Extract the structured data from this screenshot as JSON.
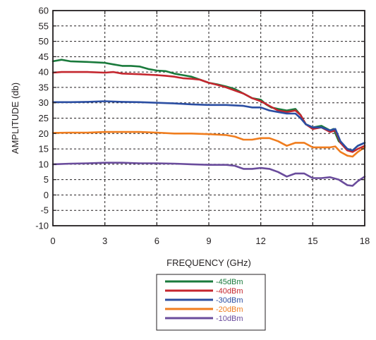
{
  "colors": {
    "axis": "#231f20",
    "grid": "#231f20"
  },
  "chart_data": {
    "type": "line",
    "xlabel": "FREQUENCY (GHz)",
    "ylabel": "AMPLITUDE (db)",
    "xlim": [
      0,
      18
    ],
    "ylim": [
      -10,
      60
    ],
    "xticks": [
      "0",
      "3",
      "6",
      "9",
      "12",
      "15",
      "18"
    ],
    "yticks": [
      "60",
      "55",
      "50",
      "45",
      "40",
      "35",
      "30",
      "25",
      "20",
      "15",
      "10",
      "5",
      "0",
      "-5",
      "-10"
    ],
    "grid": true,
    "legend_position": "bottom-center, below x-axis",
    "series": [
      {
        "name": "-45dBm",
        "color": "#1a7a3c",
        "points": [
          [
            0,
            43.5
          ],
          [
            0.5,
            44
          ],
          [
            1,
            43.5
          ],
          [
            2,
            43.3
          ],
          [
            3,
            43
          ],
          [
            3.5,
            42.5
          ],
          [
            4,
            42
          ],
          [
            4.5,
            42
          ],
          [
            5,
            41.8
          ],
          [
            5.5,
            41
          ],
          [
            6,
            40.5
          ],
          [
            6.5,
            40.3
          ],
          [
            7,
            39.5
          ],
          [
            7.5,
            39
          ],
          [
            8,
            38.5
          ],
          [
            8.5,
            37.5
          ],
          [
            9,
            36.5
          ],
          [
            9.5,
            36
          ],
          [
            10,
            35.3
          ],
          [
            10.5,
            34.5
          ],
          [
            11,
            33
          ],
          [
            11.5,
            31.5
          ],
          [
            12,
            31
          ],
          [
            12.3,
            29.5
          ],
          [
            12.6,
            28.5
          ],
          [
            13,
            28
          ],
          [
            13.5,
            27.5
          ],
          [
            14,
            28
          ],
          [
            14.3,
            26
          ],
          [
            14.6,
            23
          ],
          [
            15,
            22
          ],
          [
            15.5,
            22.5
          ],
          [
            16,
            21
          ],
          [
            16.2,
            21.5
          ],
          [
            16.5,
            17.5
          ],
          [
            17,
            15
          ],
          [
            17.3,
            14.5
          ],
          [
            17.6,
            16
          ],
          [
            18,
            17
          ]
        ]
      },
      {
        "name": "-40dBm",
        "color": "#c4262e",
        "points": [
          [
            0,
            39.8
          ],
          [
            0.5,
            40
          ],
          [
            1,
            40
          ],
          [
            2,
            40
          ],
          [
            3,
            39.8
          ],
          [
            3.5,
            40
          ],
          [
            4,
            39.5
          ],
          [
            5,
            39.3
          ],
          [
            6,
            39
          ],
          [
            6.5,
            38.8
          ],
          [
            7,
            38.5
          ],
          [
            7.5,
            38
          ],
          [
            8,
            37.8
          ],
          [
            8.5,
            37.5
          ],
          [
            9,
            36.5
          ],
          [
            9.5,
            35.8
          ],
          [
            10,
            35
          ],
          [
            10.5,
            34
          ],
          [
            11,
            33
          ],
          [
            11.5,
            31.5
          ],
          [
            12,
            30.5
          ],
          [
            12.5,
            29
          ],
          [
            13,
            27.5
          ],
          [
            13.5,
            27
          ],
          [
            14,
            27.5
          ],
          [
            14.3,
            26
          ],
          [
            14.6,
            23
          ],
          [
            15,
            21.5
          ],
          [
            15.5,
            22
          ],
          [
            16,
            20.5
          ],
          [
            16.3,
            21
          ],
          [
            16.6,
            17
          ],
          [
            17,
            14.5
          ],
          [
            17.3,
            14
          ],
          [
            17.6,
            15
          ],
          [
            18,
            16
          ]
        ]
      },
      {
        "name": "-30dBm",
        "color": "#2b4ea2",
        "points": [
          [
            0,
            30.2
          ],
          [
            1,
            30.2
          ],
          [
            2,
            30.3
          ],
          [
            3,
            30.5
          ],
          [
            4,
            30.3
          ],
          [
            5,
            30.2
          ],
          [
            6,
            30
          ],
          [
            7,
            29.8
          ],
          [
            8,
            29.5
          ],
          [
            9,
            29.3
          ],
          [
            10,
            29.3
          ],
          [
            11,
            29
          ],
          [
            11.5,
            28.5
          ],
          [
            12,
            28.5
          ],
          [
            12.5,
            27.5
          ],
          [
            13,
            27
          ],
          [
            13.5,
            26.5
          ],
          [
            14,
            26.5
          ],
          [
            14.3,
            25
          ],
          [
            14.6,
            23
          ],
          [
            15,
            22
          ],
          [
            15.5,
            22
          ],
          [
            16,
            21
          ],
          [
            16.3,
            21.5
          ],
          [
            16.6,
            17.5
          ],
          [
            17,
            15
          ],
          [
            17.3,
            14.5
          ],
          [
            17.6,
            16
          ],
          [
            18,
            17
          ]
        ]
      },
      {
        "name": "-20dBm",
        "color": "#f07d1e",
        "points": [
          [
            0,
            20.2
          ],
          [
            1,
            20.3
          ],
          [
            2,
            20.3
          ],
          [
            3,
            20.5
          ],
          [
            4,
            20.5
          ],
          [
            5,
            20.5
          ],
          [
            6,
            20.3
          ],
          [
            7,
            20
          ],
          [
            8,
            20
          ],
          [
            9,
            19.8
          ],
          [
            10,
            19.5
          ],
          [
            10.5,
            19
          ],
          [
            11,
            18
          ],
          [
            11.5,
            18
          ],
          [
            12,
            18.5
          ],
          [
            12.5,
            18.5
          ],
          [
            13,
            17.5
          ],
          [
            13.5,
            16
          ],
          [
            14,
            17
          ],
          [
            14.5,
            17
          ],
          [
            15,
            15.5
          ],
          [
            15.5,
            15.5
          ],
          [
            16,
            15.5
          ],
          [
            16.3,
            15.8
          ],
          [
            16.6,
            14
          ],
          [
            17,
            12.8
          ],
          [
            17.3,
            12.5
          ],
          [
            17.6,
            14
          ],
          [
            18,
            15.5
          ]
        ]
      },
      {
        "name": "-10dBm",
        "color": "#6a4c9c",
        "points": [
          [
            0,
            10
          ],
          [
            1,
            10.2
          ],
          [
            2,
            10.3
          ],
          [
            3,
            10.5
          ],
          [
            4,
            10.5
          ],
          [
            5,
            10.3
          ],
          [
            6,
            10.3
          ],
          [
            7,
            10.2
          ],
          [
            8,
            10
          ],
          [
            9,
            9.8
          ],
          [
            10,
            9.8
          ],
          [
            10.5,
            9.5
          ],
          [
            11,
            8.5
          ],
          [
            11.5,
            8.5
          ],
          [
            12,
            8.8
          ],
          [
            12.5,
            8.5
          ],
          [
            13,
            7.5
          ],
          [
            13.5,
            6
          ],
          [
            14,
            7
          ],
          [
            14.5,
            7
          ],
          [
            15,
            5.5
          ],
          [
            15.5,
            5.5
          ],
          [
            16,
            5.8
          ],
          [
            16.5,
            5
          ],
          [
            17,
            3.2
          ],
          [
            17.3,
            3
          ],
          [
            17.6,
            4.5
          ],
          [
            18,
            6
          ]
        ]
      }
    ]
  }
}
